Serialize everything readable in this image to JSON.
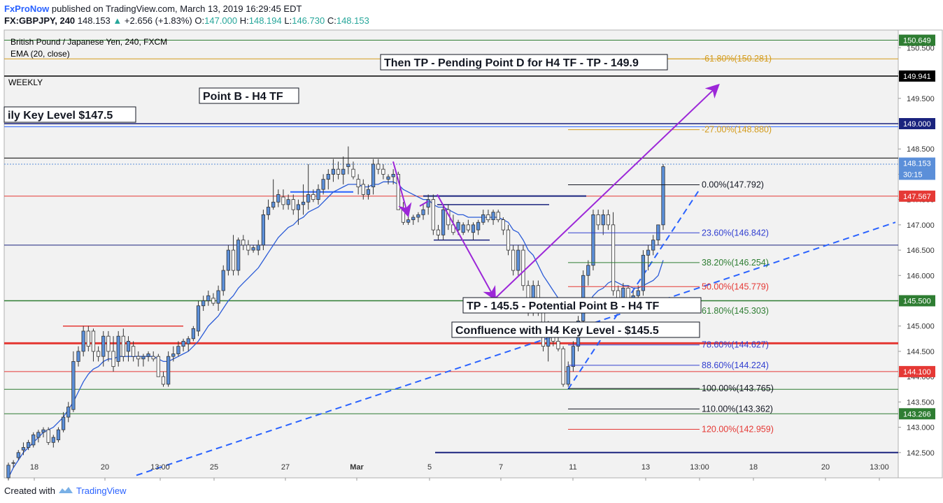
{
  "header": {
    "brand": "FxProNow",
    "published": "published on TradingView.com, March 13, 2019 16:29:45 EDT",
    "symbol": "FX:GBPJPY, 240",
    "last": "148.153",
    "change": "+2.656 (+1.83%)",
    "o_label": "O:",
    "o": "147.000",
    "h_label": "H:",
    "h": "148.194",
    "l_label": "L:",
    "l": "146.730",
    "c_label": "C:",
    "c": "148.153"
  },
  "legend": {
    "instrument": "British Pound / Japanese Yen, 240, FXCM",
    "indicator": "EMA (20, close)"
  },
  "footer": {
    "created": "Created with",
    "brand": "TradingView"
  },
  "colors": {
    "candle": "#5b8fd9",
    "ema": "#2a5bd7",
    "fib_gold": "#d49b1a",
    "fib_green": "#2e7d32",
    "fib_red": "#e53935",
    "fib_blue": "#3240d0",
    "arrow": "#9c27d8"
  },
  "chart_data": {
    "type": "candlestick",
    "ylim": [
      142.0,
      150.85
    ],
    "y_ticks": [
      "150.500",
      "150.000",
      "149.500",
      "149.000",
      "148.500",
      "148.000",
      "147.500",
      "147.000",
      "146.500",
      "146.000",
      "145.500",
      "145.000",
      "144.500",
      "144.000",
      "143.500",
      "143.000",
      "142.500"
    ],
    "x_ticks": [
      "18",
      "20",
      "13:00",
      "25",
      "27",
      "Mar",
      "5",
      "7",
      "11",
      "13",
      "13:00",
      "18",
      "20",
      "13:00"
    ],
    "price_labels": [
      {
        "text": "150.649",
        "price": 150.649,
        "bg": "#2e7d32",
        "fg": "#ffffff"
      },
      {
        "text": "149.941",
        "price": 149.941,
        "bg": "#000000",
        "fg": "#ffffff"
      },
      {
        "text": "149.000",
        "price": 149.0,
        "bg": "#1a237e",
        "fg": "#ffffff"
      },
      {
        "text": "148.153",
        "price": 148.22,
        "bg": "#5b8fd9",
        "fg": "#ffffff"
      },
      {
        "text": "30:15",
        "price": 148.0,
        "bg": "#5b8fd9",
        "fg": "#ffffff"
      },
      {
        "text": "147.567",
        "price": 147.567,
        "bg": "#e53935",
        "fg": "#ffffff"
      },
      {
        "text": "145.500",
        "price": 145.5,
        "bg": "#2e7d32",
        "fg": "#ffffff"
      },
      {
        "text": "144.100",
        "price": 144.1,
        "bg": "#e53935",
        "fg": "#ffffff"
      },
      {
        "text": "143.266",
        "price": 143.266,
        "bg": "#2e7d32",
        "fg": "#ffffff"
      }
    ],
    "annotations": {
      "weekly": "WEEKLY",
      "point_b": "Point B - H4 TF",
      "daily_key": "ily Key Level $147.5",
      "then_tp": "Then TP - Pending Point D for H4 TF - TP - 149.9",
      "tp_145": "TP - 145.5 - Potential Point B - H4 TF",
      "confluence": "Confluence with H4 Key Level - $145.5"
    },
    "fib_levels": [
      {
        "label": "0.00%(147.792)",
        "price": 147.792,
        "color": "#131722"
      },
      {
        "label": "23.60%(146.842)",
        "price": 146.842,
        "color": "#3240d0"
      },
      {
        "label": "38.20%(146.254)",
        "price": 146.254,
        "color": "#2e7d32"
      },
      {
        "label": "50.00%(145.779)",
        "price": 145.779,
        "color": "#e53935"
      },
      {
        "label": "61.80%(145.303)",
        "price": 145.303,
        "color": "#2e7d32"
      },
      {
        "label": "78.60%(144.627)",
        "price": 144.627,
        "color": "#3240d0"
      },
      {
        "label": "88.60%(144.224)",
        "price": 144.224,
        "color": "#3240d0"
      },
      {
        "label": "100.00%(143.765)",
        "price": 143.765,
        "color": "#131722"
      },
      {
        "label": "110.00%(143.362)",
        "price": 143.362,
        "color": "#131722"
      },
      {
        "label": "120.00%(142.959)",
        "price": 142.959,
        "color": "#e53935"
      },
      {
        "label": "-27.00%(148.880)",
        "price": 148.88,
        "color": "#d49b1a"
      },
      {
        "label": "-61.80%(150.281)",
        "price": 150.281,
        "color": "#d49b1a"
      }
    ],
    "candles": [
      [
        142.0,
        142.3,
        141.95,
        142.25
      ],
      [
        142.3,
        142.35,
        142.2,
        142.3
      ],
      [
        142.4,
        142.55,
        142.35,
        142.5
      ],
      [
        142.55,
        142.7,
        142.45,
        142.6
      ],
      [
        142.6,
        142.75,
        142.55,
        142.7
      ],
      [
        142.65,
        142.9,
        142.6,
        142.85
      ],
      [
        142.8,
        142.95,
        142.7,
        142.9
      ],
      [
        142.9,
        143.0,
        142.8,
        142.95
      ],
      [
        142.95,
        143.0,
        142.65,
        142.7
      ],
      [
        142.7,
        142.85,
        142.6,
        142.8
      ],
      [
        142.75,
        143.0,
        142.7,
        142.95
      ],
      [
        142.95,
        143.3,
        142.9,
        143.2
      ],
      [
        143.2,
        143.5,
        143.1,
        143.4
      ],
      [
        143.35,
        144.5,
        143.3,
        144.3
      ],
      [
        144.3,
        144.6,
        144.2,
        144.5
      ],
      [
        144.5,
        145.0,
        144.4,
        144.9
      ],
      [
        144.9,
        145.0,
        144.5,
        144.6
      ],
      [
        144.9,
        144.95,
        144.3,
        144.5
      ],
      [
        144.5,
        144.6,
        144.3,
        144.4
      ],
      [
        144.4,
        144.9,
        144.2,
        144.8
      ],
      [
        144.8,
        144.9,
        144.3,
        144.5
      ],
      [
        144.5,
        144.8,
        144.1,
        144.2
      ],
      [
        144.3,
        144.9,
        144.2,
        144.8
      ],
      [
        144.8,
        144.95,
        144.3,
        144.4
      ],
      [
        144.5,
        144.8,
        144.3,
        144.7
      ],
      [
        144.6,
        144.7,
        144.3,
        144.4
      ],
      [
        144.4,
        144.5,
        144.2,
        144.35
      ],
      [
        144.35,
        144.45,
        144.2,
        144.4
      ],
      [
        144.4,
        144.5,
        144.3,
        144.45
      ],
      [
        144.4,
        144.5,
        144.3,
        144.35
      ],
      [
        144.4,
        144.45,
        144.0,
        144.0
      ],
      [
        144.0,
        144.1,
        143.8,
        143.85
      ],
      [
        143.85,
        144.5,
        143.8,
        144.4
      ],
      [
        144.4,
        144.6,
        144.3,
        144.45
      ],
      [
        144.45,
        144.7,
        144.4,
        144.6
      ],
      [
        144.6,
        144.75,
        144.5,
        144.7
      ],
      [
        144.65,
        144.8,
        144.5,
        144.75
      ],
      [
        144.75,
        145.0,
        144.7,
        144.95
      ],
      [
        144.9,
        145.5,
        144.8,
        145.4
      ],
      [
        145.4,
        145.6,
        145.3,
        145.5
      ],
      [
        145.5,
        145.7,
        145.4,
        145.6
      ],
      [
        145.55,
        145.65,
        145.4,
        145.45
      ],
      [
        145.45,
        145.8,
        145.3,
        145.7
      ],
      [
        145.7,
        146.2,
        145.6,
        146.1
      ],
      [
        146.1,
        146.6,
        146.0,
        146.5
      ],
      [
        146.5,
        146.8,
        146.0,
        146.1
      ],
      [
        146.1,
        146.75,
        146.0,
        146.7
      ],
      [
        146.7,
        146.8,
        146.5,
        146.6
      ],
      [
        146.6,
        146.7,
        146.4,
        146.5
      ],
      [
        146.5,
        146.6,
        146.45,
        146.55
      ],
      [
        146.5,
        146.7,
        146.4,
        146.6
      ],
      [
        146.6,
        147.3,
        146.5,
        147.2
      ],
      [
        147.2,
        147.5,
        147.1,
        147.35
      ],
      [
        147.35,
        147.9,
        147.3,
        147.45
      ],
      [
        147.45,
        147.7,
        147.35,
        147.6
      ],
      [
        147.55,
        147.7,
        147.3,
        147.4
      ],
      [
        147.4,
        147.6,
        147.3,
        147.5
      ],
      [
        147.5,
        147.6,
        147.2,
        147.3
      ],
      [
        147.3,
        147.5,
        147.0,
        147.4
      ],
      [
        147.4,
        147.8,
        147.2,
        147.45
      ],
      [
        147.45,
        148.2,
        147.3,
        147.6
      ],
      [
        147.6,
        147.7,
        147.45,
        147.5
      ],
      [
        147.5,
        147.8,
        147.4,
        147.7
      ],
      [
        147.7,
        148.0,
        147.6,
        147.9
      ],
      [
        147.9,
        148.1,
        147.7,
        148.0
      ],
      [
        148.0,
        148.3,
        147.85,
        148.1
      ],
      [
        148.1,
        148.25,
        147.9,
        148.0
      ],
      [
        148.0,
        148.35,
        147.8,
        148.1
      ],
      [
        148.15,
        148.55,
        148.0,
        148.2
      ],
      [
        148.1,
        148.25,
        147.9,
        147.95
      ],
      [
        147.9,
        148.0,
        147.6,
        147.75
      ],
      [
        147.8,
        147.9,
        147.5,
        147.6
      ],
      [
        147.6,
        147.8,
        147.5,
        147.7
      ],
      [
        147.75,
        148.3,
        147.6,
        148.2
      ],
      [
        148.2,
        148.3,
        148.0,
        148.1
      ],
      [
        148.1,
        148.2,
        147.9,
        148.0
      ],
      [
        147.9,
        148.0,
        147.8,
        147.95
      ],
      [
        147.95,
        148.1,
        147.8,
        148.0
      ],
      [
        148.0,
        148.05,
        147.3,
        147.3
      ],
      [
        147.3,
        147.45,
        147.0,
        147.05
      ],
      [
        147.05,
        147.2,
        147.0,
        147.1
      ],
      [
        147.1,
        147.2,
        147.0,
        147.15
      ],
      [
        147.15,
        147.25,
        147.05,
        147.2
      ],
      [
        147.2,
        147.4,
        147.1,
        147.3
      ],
      [
        147.35,
        147.6,
        147.2,
        147.5
      ],
      [
        147.5,
        147.6,
        146.8,
        146.9
      ],
      [
        146.9,
        147.0,
        146.7,
        146.8
      ],
      [
        146.8,
        147.4,
        146.7,
        147.3
      ],
      [
        147.3,
        147.4,
        146.9,
        147.0
      ],
      [
        147.0,
        147.2,
        146.8,
        146.85
      ],
      [
        146.9,
        147.1,
        146.8,
        147.05
      ],
      [
        146.85,
        147.05,
        146.8,
        147.0
      ],
      [
        147.0,
        147.1,
        146.85,
        146.9
      ],
      [
        146.85,
        147.05,
        146.7,
        147.0
      ],
      [
        146.9,
        147.1,
        146.8,
        147.05
      ],
      [
        147.05,
        147.3,
        147.0,
        147.2
      ],
      [
        147.2,
        147.3,
        147.05,
        147.1
      ],
      [
        147.1,
        147.3,
        147.0,
        147.25
      ],
      [
        147.25,
        147.3,
        147.05,
        147.1
      ],
      [
        147.1,
        147.15,
        146.8,
        146.9
      ],
      [
        146.9,
        147.0,
        146.4,
        146.5
      ],
      [
        146.5,
        146.6,
        146.0,
        146.1
      ],
      [
        146.1,
        146.6,
        146.0,
        146.5
      ],
      [
        146.5,
        146.6,
        145.7,
        145.8
      ],
      [
        145.8,
        145.9,
        145.2,
        145.3
      ],
      [
        145.3,
        145.9,
        145.2,
        145.8
      ],
      [
        145.8,
        145.9,
        145.2,
        145.3
      ],
      [
        145.3,
        145.4,
        144.5,
        144.6
      ],
      [
        144.6,
        145.1,
        144.3,
        144.8
      ],
      [
        144.8,
        144.9,
        144.6,
        144.7
      ],
      [
        144.7,
        144.9,
        144.5,
        144.55
      ],
      [
        144.55,
        144.6,
        143.8,
        143.85
      ],
      [
        143.85,
        144.3,
        143.8,
        144.2
      ],
      [
        144.2,
        144.7,
        144.1,
        144.6
      ],
      [
        144.6,
        145.2,
        144.5,
        145.1
      ],
      [
        145.1,
        146.1,
        145.0,
        146.0
      ],
      [
        146.0,
        146.3,
        145.8,
        146.2
      ],
      [
        146.2,
        147.3,
        146.1,
        147.2
      ],
      [
        147.2,
        147.3,
        146.9,
        147.0
      ],
      [
        147.0,
        147.3,
        146.8,
        147.2
      ],
      [
        147.2,
        147.3,
        146.9,
        147.0
      ],
      [
        147.0,
        147.25,
        145.6,
        145.7
      ],
      [
        145.7,
        145.8,
        145.4,
        145.5
      ],
      [
        145.5,
        145.85,
        145.3,
        145.75
      ],
      [
        145.75,
        145.8,
        145.4,
        145.5
      ],
      [
        145.5,
        145.7,
        145.4,
        145.6
      ],
      [
        145.6,
        145.8,
        145.5,
        145.7
      ],
      [
        145.7,
        146.5,
        145.6,
        146.4
      ],
      [
        146.4,
        146.6,
        146.1,
        146.5
      ],
      [
        146.5,
        146.8,
        146.4,
        146.7
      ],
      [
        146.7,
        147.0,
        146.6,
        147.0
      ],
      [
        147.0,
        148.2,
        146.9,
        148.15
      ]
    ],
    "ema": [
      142.0,
      142.2,
      142.35,
      142.5,
      142.6,
      142.7,
      142.8,
      142.9,
      142.95,
      143.0,
      143.1,
      143.2,
      143.35,
      143.5,
      143.7,
      143.9,
      144.05,
      144.15,
      144.2,
      144.3,
      144.35,
      144.35,
      144.4,
      144.4,
      144.4,
      144.4,
      144.4,
      144.4,
      144.4,
      144.4,
      144.35,
      144.3,
      144.3,
      144.35,
      144.4,
      144.45,
      144.5,
      144.6,
      144.7,
      144.85,
      145.0,
      145.1,
      145.2,
      145.35,
      145.5,
      145.6,
      145.75,
      145.85,
      145.95,
      146.05,
      146.15,
      146.3,
      146.45,
      146.6,
      146.75,
      146.85,
      146.95,
      147.0,
      147.1,
      147.15,
      147.25,
      147.3,
      147.35,
      147.45,
      147.55,
      147.65,
      147.7,
      147.75,
      147.8,
      147.8,
      147.8,
      147.75,
      147.75,
      147.8,
      147.8,
      147.85,
      147.85,
      147.85,
      147.8,
      147.7,
      147.65,
      147.6,
      147.55,
      147.5,
      147.5,
      147.4,
      147.35,
      147.35,
      147.3,
      147.25,
      147.2,
      147.2,
      147.15,
      147.15,
      147.15,
      147.15,
      147.15,
      147.15,
      147.15,
      147.1,
      147.05,
      146.9,
      146.85,
      146.7,
      146.5,
      146.4,
      146.2,
      146.0,
      145.85,
      145.7,
      145.55,
      145.4,
      145.35,
      145.3,
      145.3,
      145.4,
      145.45,
      145.6,
      145.7,
      145.75,
      145.85,
      145.9,
      145.85,
      145.8,
      145.8,
      145.75,
      145.75,
      145.8,
      145.85,
      145.9,
      146.0,
      146.3
    ]
  }
}
